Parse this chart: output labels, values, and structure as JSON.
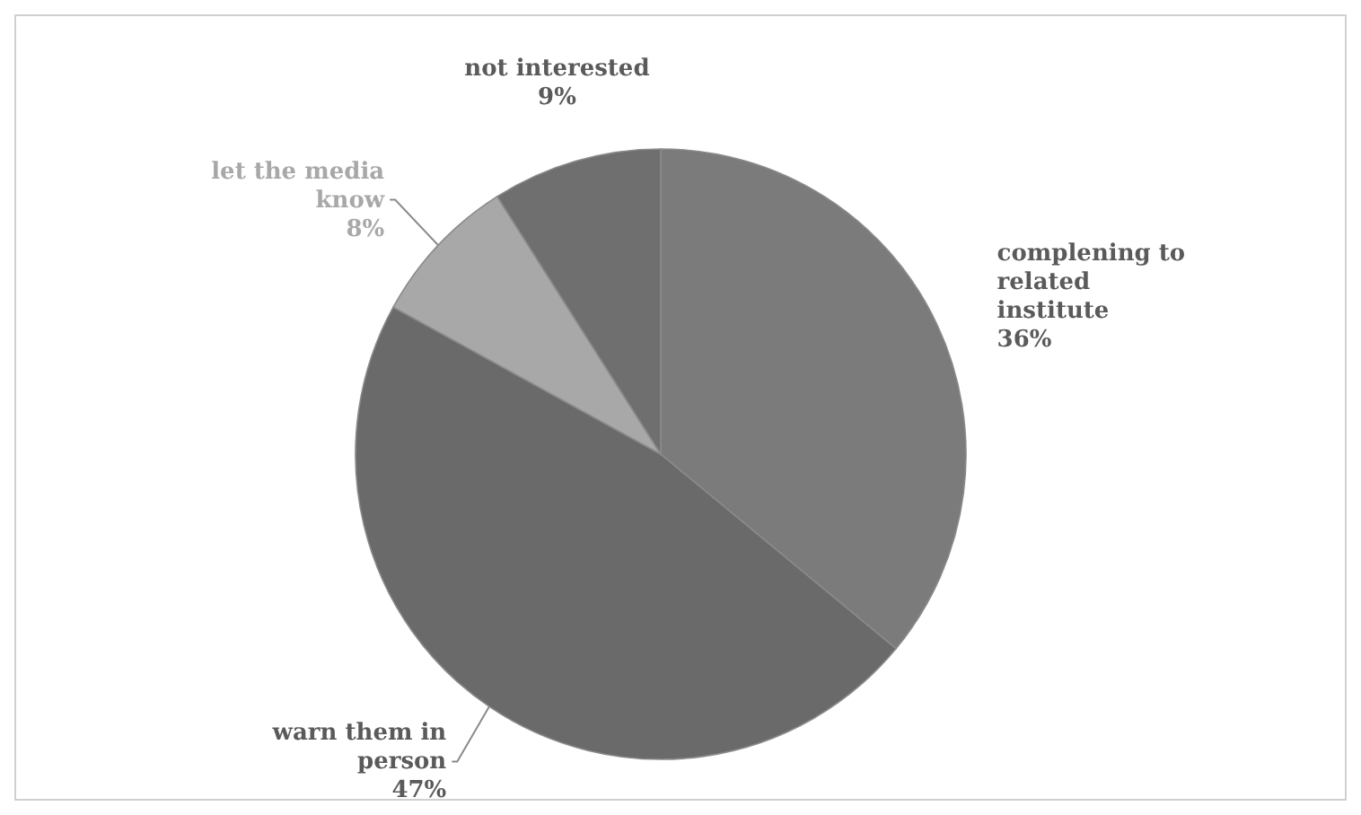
{
  "chart_data": {
    "type": "pie",
    "categories": [
      "complening to related institute",
      "warn them in person",
      "let the media know",
      "not interested"
    ],
    "values": [
      36,
      47,
      8,
      9
    ],
    "colors": [
      "#7b7b7b",
      "#6a6a6a",
      "#a8a8a8",
      "#6f6f6f"
    ],
    "value_labels": [
      "36%",
      "47%",
      "8%",
      "9%"
    ]
  }
}
